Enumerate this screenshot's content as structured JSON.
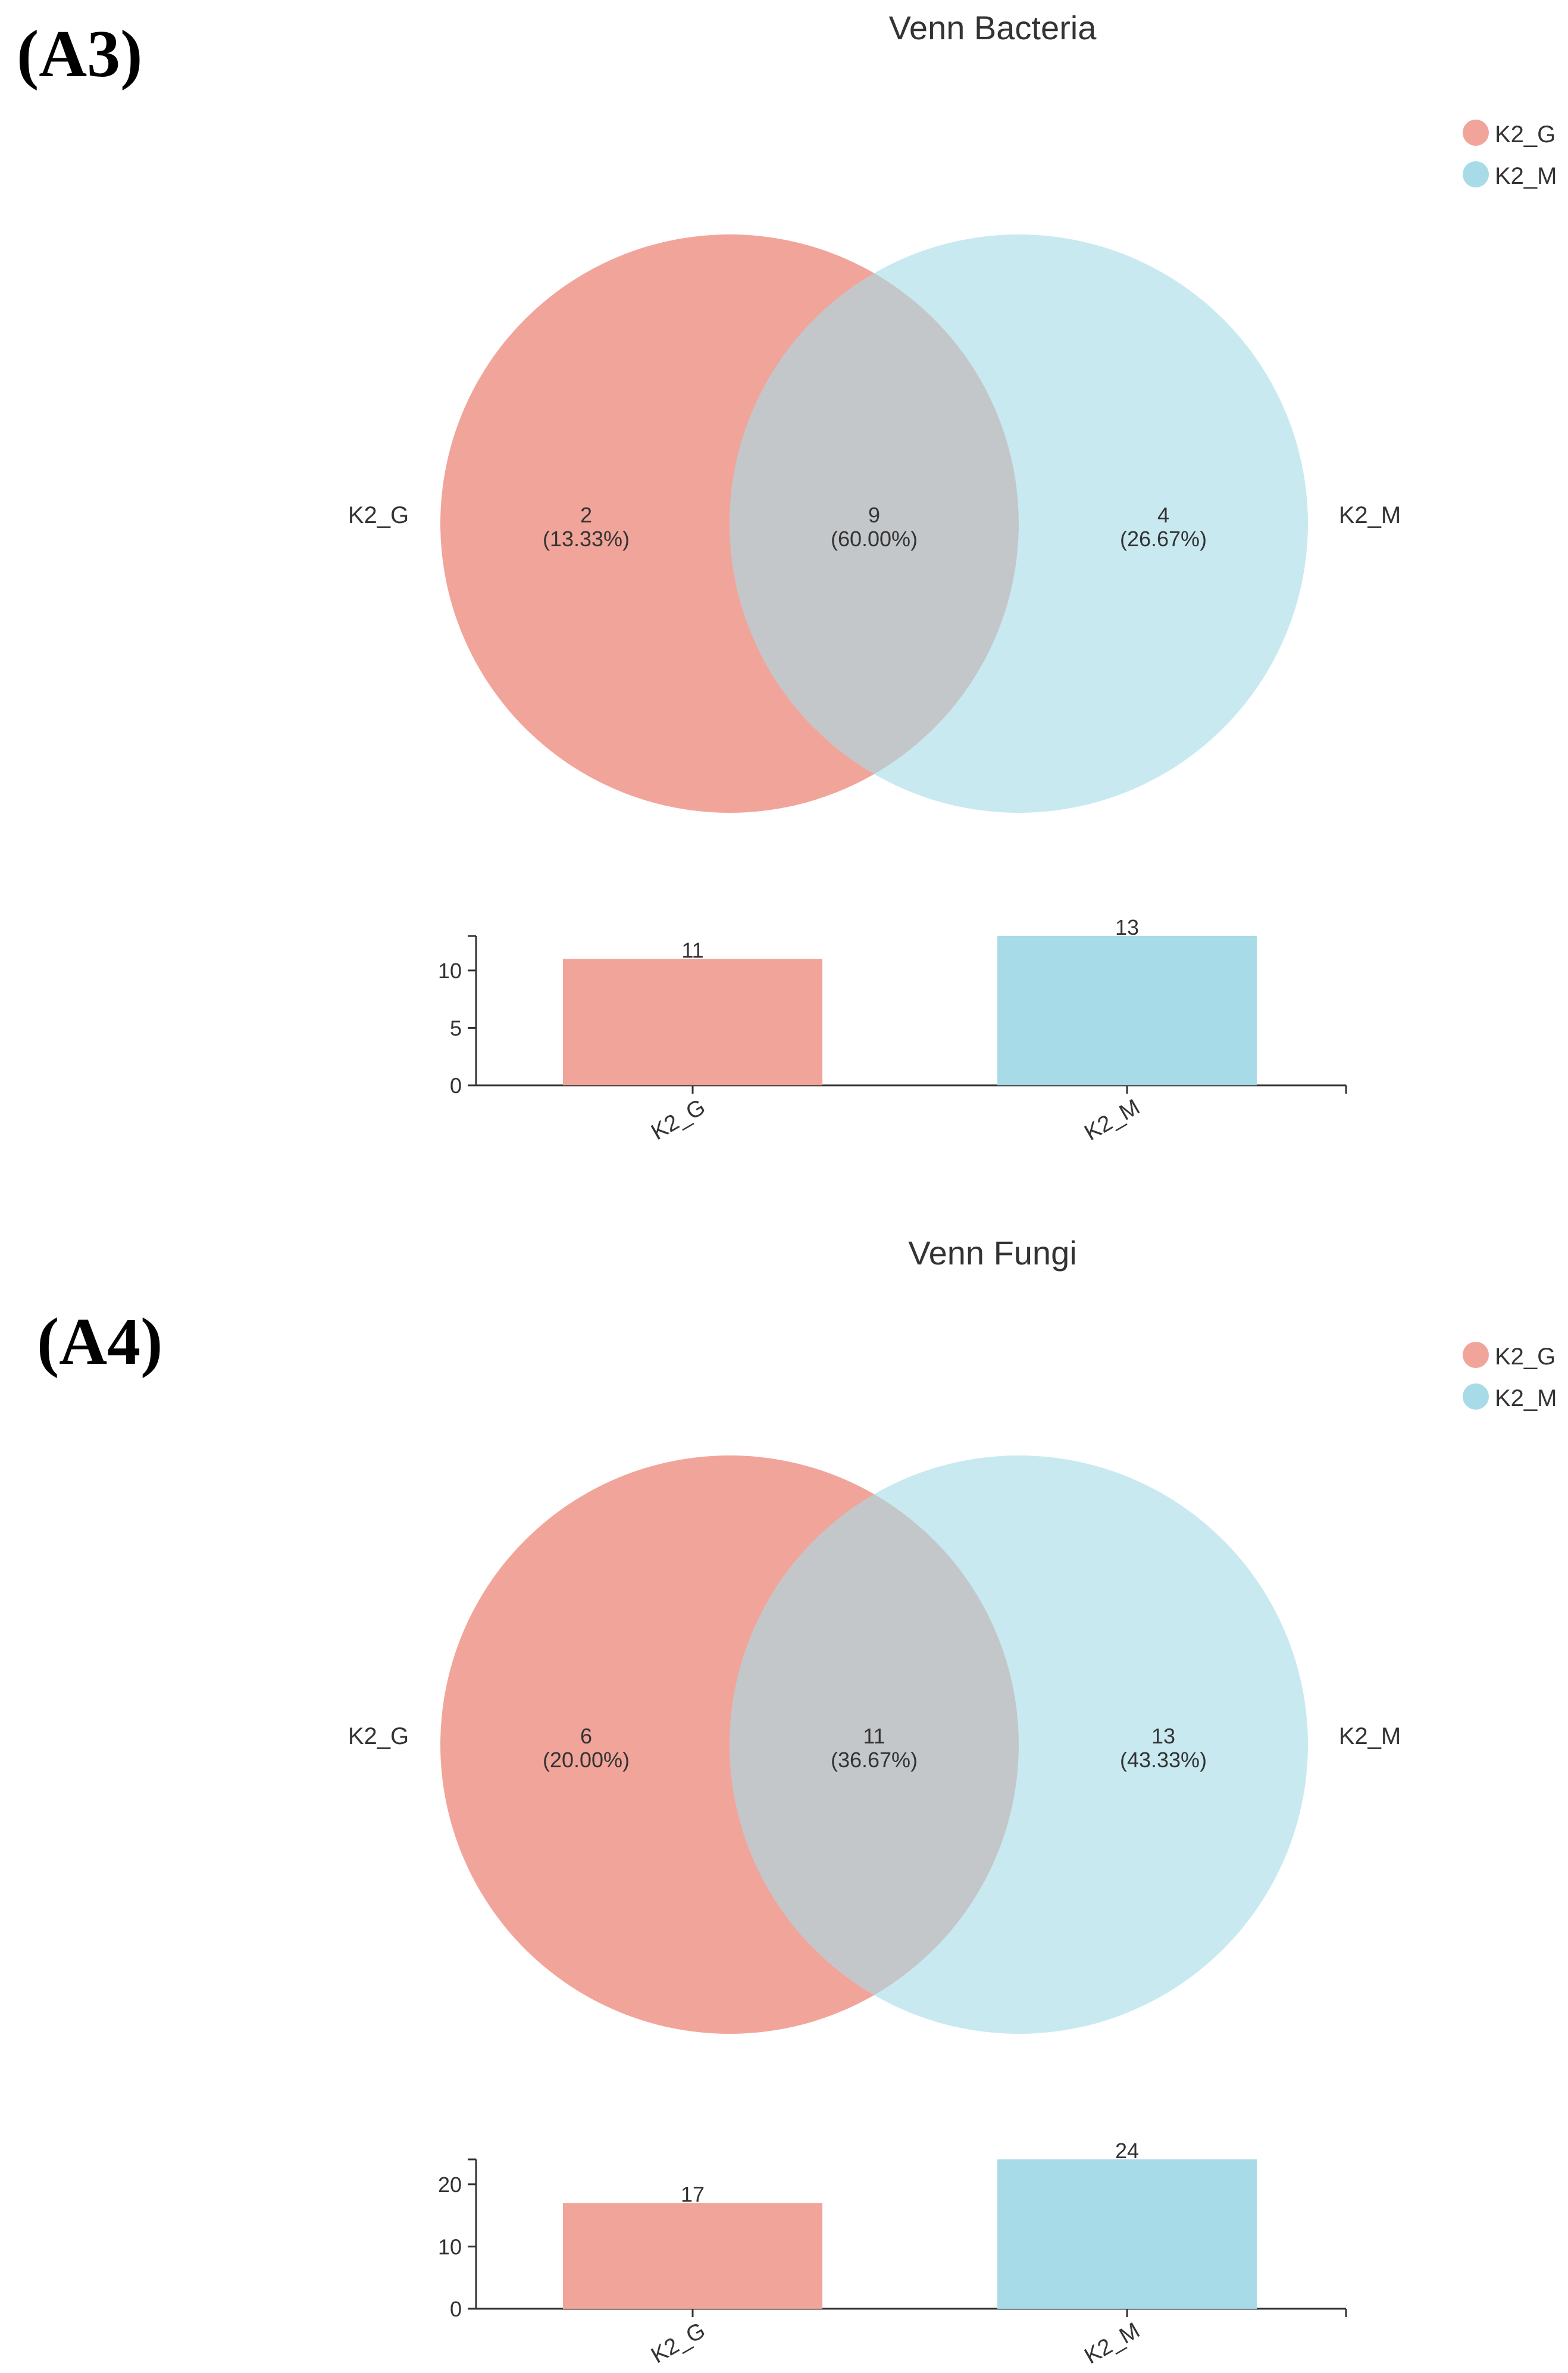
{
  "panels": [
    {
      "label": "(A3)",
      "title": "Venn Bacteria",
      "legend": [
        {
          "name": "K2_G",
          "color": "#f1a59a"
        },
        {
          "name": "K2_M",
          "color": "#a8dbe8"
        }
      ],
      "chart_data": {
        "type": "venn",
        "sets": [
          {
            "name": "K2_G",
            "total": 11,
            "unique": 2,
            "unique_pct": "(13.33%)",
            "color": "#f1a59a"
          },
          {
            "name": "K2_M",
            "total": 13,
            "unique": 4,
            "unique_pct": "(26.67%)",
            "color": "#a8dbe8"
          }
        ],
        "intersection": {
          "value": 9,
          "pct": "(60.00%)"
        },
        "bar": {
          "type": "bar",
          "categories": [
            "K2_G",
            "K2_M"
          ],
          "values": [
            11,
            13
          ],
          "yticks": [
            0,
            5,
            10
          ],
          "ylim": [
            0,
            13
          ]
        }
      }
    },
    {
      "label": "(A4)",
      "title": "Venn Fungi",
      "legend": [
        {
          "name": "K2_G",
          "color": "#f1a59a"
        },
        {
          "name": "K2_M",
          "color": "#a8dbe8"
        }
      ],
      "chart_data": {
        "type": "venn",
        "sets": [
          {
            "name": "K2_G",
            "total": 17,
            "unique": 6,
            "unique_pct": "(20.00%)",
            "color": "#f1a59a"
          },
          {
            "name": "K2_M",
            "total": 24,
            "unique": 13,
            "unique_pct": "(43.33%)",
            "color": "#a8dbe8"
          }
        ],
        "intersection": {
          "value": 11,
          "pct": "(36.67%)"
        },
        "bar": {
          "type": "bar",
          "categories": [
            "K2_G",
            "K2_M"
          ],
          "values": [
            17,
            24
          ],
          "yticks": [
            0,
            10,
            20
          ],
          "ylim": [
            0,
            24
          ]
        }
      }
    }
  ]
}
